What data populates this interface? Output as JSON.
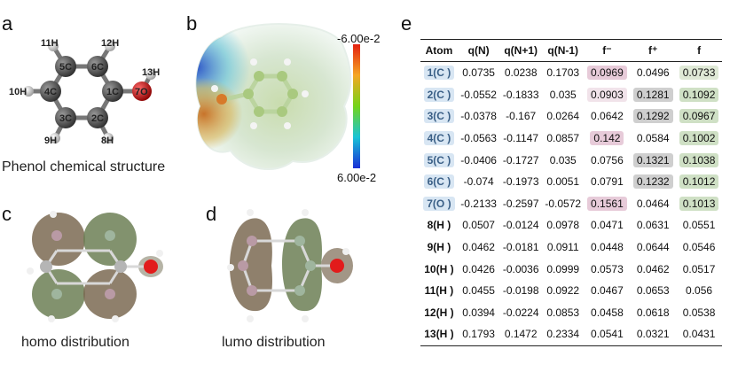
{
  "panels": {
    "a": {
      "letter": "a",
      "caption": "Phenol chemical structure",
      "atoms": [
        "1C",
        "2C",
        "3C",
        "4C",
        "5C",
        "6C",
        "7O",
        "8H",
        "9H",
        "10H",
        "11H",
        "12H",
        "13H"
      ]
    },
    "b": {
      "letter": "b",
      "scale_top": "-6.00e-2",
      "scale_bottom": "6.00e-2"
    },
    "c": {
      "letter": "c",
      "caption": "homo distribution"
    },
    "d": {
      "letter": "d",
      "caption": "lumo distribution"
    },
    "e": {
      "letter": "e"
    }
  },
  "table": {
    "headers": [
      "Atom",
      "q(N)",
      "q(N+1)",
      "q(N-1)",
      "f⁻",
      "f⁺",
      "f"
    ],
    "rows": [
      {
        "atom": "1(C )",
        "qN": "0.0735",
        "qN1": "0.0238",
        "qNm1": "0.1703",
        "fm": "0.0969",
        "fp": "0.0496",
        "f": "0.0733"
      },
      {
        "atom": "2(C )",
        "qN": "-0.0552",
        "qN1": "-0.1833",
        "qNm1": "0.035",
        "fm": "0.0903",
        "fp": "0.1281",
        "f": "0.1092"
      },
      {
        "atom": "3(C )",
        "qN": "-0.0378",
        "qN1": "-0.167",
        "qNm1": "0.0264",
        "fm": "0.0642",
        "fp": "0.1292",
        "f": "0.0967"
      },
      {
        "atom": "4(C )",
        "qN": "-0.0563",
        "qN1": "-0.1147",
        "qNm1": "0.0857",
        "fm": "0.142",
        "fp": "0.0584",
        "f": "0.1002"
      },
      {
        "atom": "5(C )",
        "qN": "-0.0406",
        "qN1": "-0.1727",
        "qNm1": "0.035",
        "fm": "0.0756",
        "fp": "0.1321",
        "f": "0.1038"
      },
      {
        "atom": "6(C )",
        "qN": "-0.074",
        "qN1": "-0.1973",
        "qNm1": "0.0051",
        "fm": "0.0791",
        "fp": "0.1232",
        "f": "0.1012"
      },
      {
        "atom": "7(O )",
        "qN": "-0.2133",
        "qN1": "-0.2597",
        "qNm1": "-0.0572",
        "fm": "0.1561",
        "fp": "0.0464",
        "f": "0.1013"
      },
      {
        "atom": "8(H )",
        "qN": "0.0507",
        "qN1": "-0.0124",
        "qNm1": "0.0978",
        "fm": "0.0471",
        "fp": "0.0631",
        "f": "0.0551"
      },
      {
        "atom": "9(H )",
        "qN": "0.0462",
        "qN1": "-0.0181",
        "qNm1": "0.0911",
        "fm": "0.0448",
        "fp": "0.0644",
        "f": "0.0546"
      },
      {
        "atom": "10(H )",
        "qN": "0.0426",
        "qN1": "-0.0036",
        "qNm1": "0.0999",
        "fm": "0.0573",
        "fp": "0.0462",
        "f": "0.0517"
      },
      {
        "atom": "11(H )",
        "qN": "0.0455",
        "qN1": "-0.0198",
        "qNm1": "0.0922",
        "fm": "0.0467",
        "fp": "0.0653",
        "f": "0.056"
      },
      {
        "atom": "12(H )",
        "qN": "0.0394",
        "qN1": "-0.0224",
        "qNm1": "0.0853",
        "fm": "0.0458",
        "fp": "0.0618",
        "f": "0.0538"
      },
      {
        "atom": "13(H )",
        "qN": "0.1793",
        "qN1": "0.1472",
        "qNm1": "0.2334",
        "fm": "0.0541",
        "fp": "0.0321",
        "f": "0.0431"
      }
    ]
  },
  "colors": {
    "carbon": "#5a5a5a",
    "oxygen": "#d11a1a",
    "hydrogen": "#d8d8d8",
    "highlight_atom": "#d8e6f3",
    "highlight_fminus": "#e7cbd9",
    "highlight_fplus": "#cfcfcf",
    "highlight_f": "#cfe0c5"
  }
}
